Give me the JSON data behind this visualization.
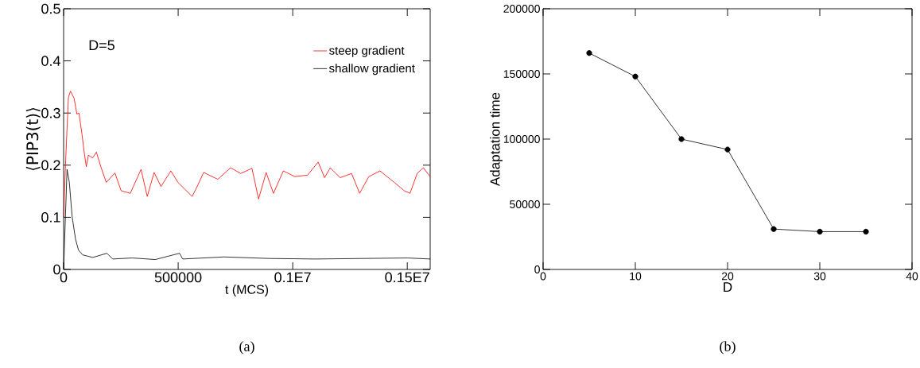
{
  "chart_data": [
    {
      "type": "line",
      "xlabel": "t  (MCS)",
      "ylabel": "⟨PIP3(t)⟩",
      "xlim": [
        0,
        1600000
      ],
      "ylim": [
        0,
        0.5
      ],
      "xticks": [
        0,
        500000,
        {
          "value": 1000000,
          "label": "0.1E7"
        },
        {
          "value": 1500000,
          "label": "0.15E7"
        }
      ],
      "yticks": [
        0,
        0.1,
        0.2,
        0.3,
        0.4,
        0.5
      ],
      "legend": "top right",
      "marker": "none",
      "line_style": "solid",
      "annotations": [
        "D=5",
        "(a)"
      ],
      "series": [
        {
          "name": "steep gradient",
          "color": "#ff0000",
          "x": [
            0,
            9000,
            21000,
            30000,
            46000,
            58000,
            67000,
            80000,
            89000,
            99000,
            108000,
            127000,
            143000,
            164000,
            186000,
            224000,
            251000,
            291000,
            338000,
            365000,
            395000,
            425000,
            468000,
            499000,
            561000,
            586000,
            611000,
            673000,
            729000,
            773000,
            822000,
            851000,
            884000,
            916000,
            959000,
            1009000,
            1065000,
            1111000,
            1139000,
            1164000,
            1207000,
            1257000,
            1292000,
            1332000,
            1381000,
            1443000,
            1487000,
            1512000,
            1543000,
            1570000,
            1600000
          ],
          "values": [
            0.1,
            0.21,
            0.33,
            0.342,
            0.328,
            0.298,
            0.3,
            0.26,
            0.227,
            0.197,
            0.219,
            0.214,
            0.225,
            0.195,
            0.167,
            0.185,
            0.151,
            0.146,
            0.192,
            0.14,
            0.186,
            0.159,
            0.189,
            0.167,
            0.14,
            0.162,
            0.186,
            0.173,
            0.195,
            0.184,
            0.194,
            0.135,
            0.186,
            0.146,
            0.189,
            0.178,
            0.181,
            0.206,
            0.176,
            0.195,
            0.176,
            0.184,
            0.146,
            0.178,
            0.189,
            0.167,
            0.151,
            0.146,
            0.184,
            0.195,
            0.178
          ]
        },
        {
          "name": "shallow gradient",
          "color": "#000000",
          "x": [
            0,
            15000,
            25000,
            37000,
            52000,
            65000,
            83000,
            127000,
            189000,
            214000,
            300000,
            400000,
            506000,
            520000,
            700000,
            900000,
            1100000,
            1300000,
            1500000,
            1600000
          ],
          "values": [
            0,
            0.192,
            0.167,
            0.102,
            0.058,
            0.037,
            0.028,
            0.023,
            0.031,
            0.02,
            0.022,
            0.019,
            0.031,
            0.02,
            0.024,
            0.021,
            0.02,
            0.021,
            0.022,
            0.02
          ]
        }
      ]
    },
    {
      "type": "line",
      "xlabel": "D",
      "ylabel": "Adaptation time",
      "xlim": [
        0,
        40
      ],
      "ylim": [
        0,
        200000
      ],
      "xticks": [
        0,
        10,
        20,
        30,
        40
      ],
      "yticks": [
        0,
        50000,
        100000,
        150000,
        200000
      ],
      "marker": "circle",
      "line_style": "solid",
      "annotations": [
        "(b)"
      ],
      "series": [
        {
          "color": "#000000",
          "x": [
            5,
            10,
            15,
            20,
            25,
            30,
            35
          ],
          "values": [
            166000,
            148000,
            100000,
            92000,
            31000,
            29000,
            29000
          ]
        }
      ]
    }
  ]
}
